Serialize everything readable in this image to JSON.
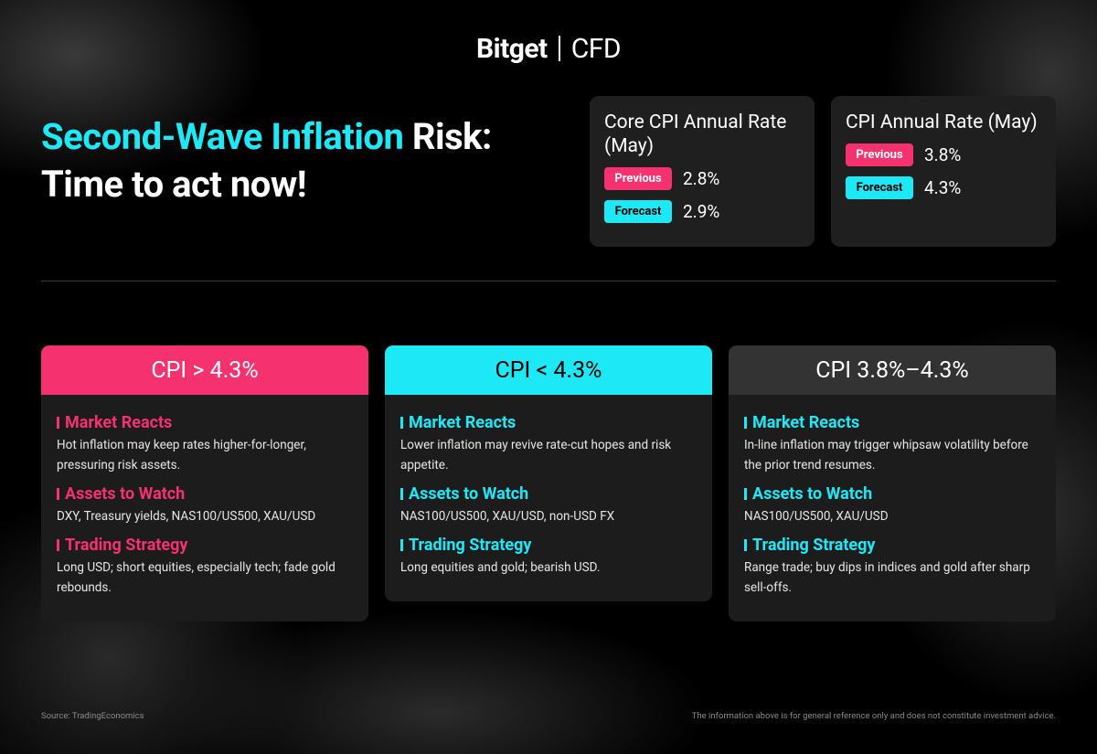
{
  "logo": {
    "brand": "Bitget",
    "product": "CFD"
  },
  "headline": {
    "highlight": "Second-Wave Inflation",
    "rest": "Risk:",
    "line2": "Time to act now!"
  },
  "stat_cards": [
    {
      "title": "Core CPI Annual Rate (May)",
      "rows": [
        {
          "label": "Previous",
          "value": "2.8%"
        },
        {
          "label": "Forecast",
          "value": "2.9%"
        }
      ]
    },
    {
      "title": "CPI Annual Rate (May)",
      "rows": [
        {
          "label": "Previous",
          "value": "3.8%"
        },
        {
          "label": "Forecast",
          "value": "4.3%"
        }
      ]
    }
  ],
  "scenarios": [
    {
      "header": "CPI > 4.3%",
      "header_color": "#f5316f",
      "accent": "#f5316f",
      "sections": [
        {
          "heading": "Market Reacts",
          "body": "Hot inflation may keep rates higher-for-longer, pressuring risk assets."
        },
        {
          "heading": "Assets to Watch",
          "body": "DXY, Treasury yields, NAS100/US500, XAU/USD"
        },
        {
          "heading": "Trading Strategy",
          "body": "Long USD; short equities, especially tech; fade gold rebounds."
        }
      ]
    },
    {
      "header": "CPI < 4.3%",
      "header_color": "#1de9f6",
      "accent": "#1de9f6",
      "sections": [
        {
          "heading": "Market Reacts",
          "body": "Lower inflation may revive rate-cut hopes and risk appetite."
        },
        {
          "heading": "Assets to Watch",
          "body": "NAS100/US500, XAU/USD, non-USD FX"
        },
        {
          "heading": "Trading Strategy",
          "body": "Long equities and gold; bearish USD."
        }
      ]
    },
    {
      "header": "CPI 3.8%–4.3%",
      "header_color": "#333333",
      "accent": "#1de9f6",
      "sections": [
        {
          "heading": "Market Reacts",
          "body": "In-line inflation may trigger whipsaw volatility before the prior trend resumes."
        },
        {
          "heading": "Assets to Watch",
          "body": "NAS100/US500, XAU/USD"
        },
        {
          "heading": "Trading Strategy",
          "body": "Range trade; buy dips in indices and gold after sharp sell-offs."
        }
      ]
    }
  ],
  "footer": {
    "source": "Source: TradingEconomics",
    "disclaimer": "The information above is for general reference only and does not constitute investment advice."
  }
}
